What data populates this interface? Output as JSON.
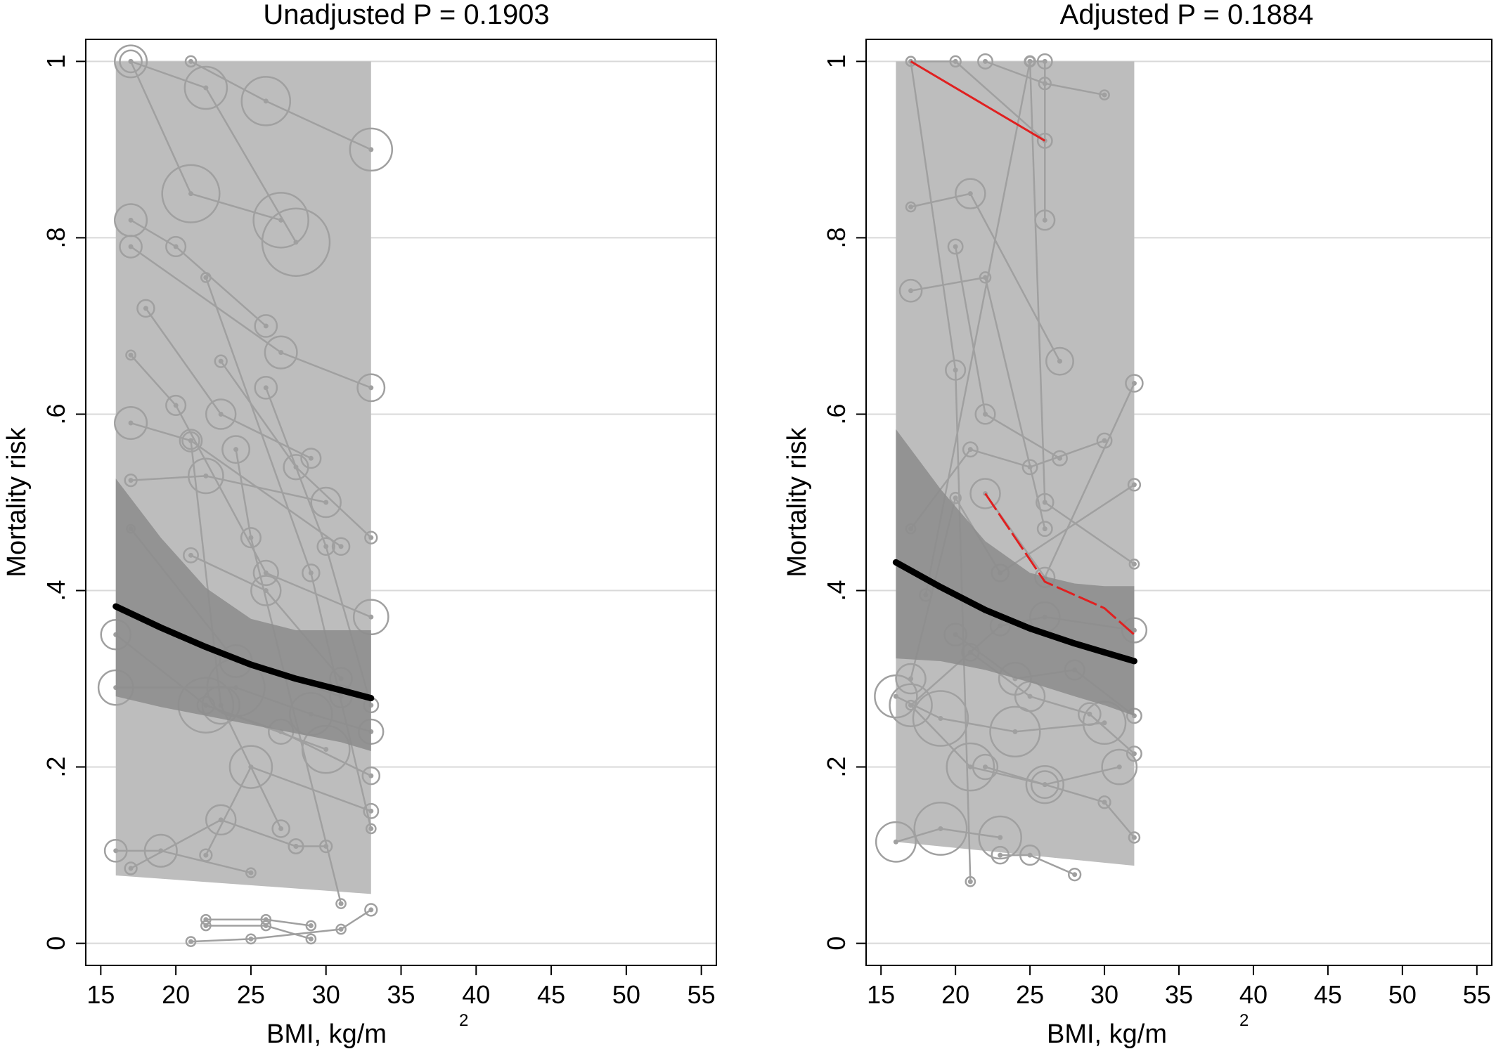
{
  "colors": {
    "band_outer": "#bdbdbd",
    "band_inner": "#8c8c8c",
    "fitted_line": "#000000",
    "study_lines": "#a0a0a0",
    "highlight": "#e02020",
    "grid": "#d9d9d9"
  },
  "chart_data": [
    {
      "type": "line",
      "title": "Unadjusted P = 0.1903",
      "xlabel_main": "BMI, kg/m",
      "xlabel_sup": "2",
      "ylabel": "Mortality risk",
      "xlim": [
        14,
        56
      ],
      "ylim": [
        -0.025,
        1.025
      ],
      "x_ticks": [
        15,
        20,
        25,
        30,
        35,
        40,
        45,
        50,
        55
      ],
      "x_tick_labels": [
        "15",
        "20",
        "25",
        "30",
        "35",
        "40",
        "45",
        "50",
        "55"
      ],
      "y_ticks": [
        0,
        0.2,
        0.4,
        0.6,
        0.8,
        1
      ],
      "y_tick_labels": [
        "0",
        ".2",
        ".4",
        ".6",
        ".8",
        "1"
      ],
      "grid": true,
      "band_outer": {
        "x": [
          16,
          33
        ],
        "lower": [
          0.077,
          0.056
        ],
        "upper": [
          1.0,
          1.0
        ]
      },
      "band_inner": {
        "x": [
          16,
          19,
          22,
          25,
          28,
          31,
          33
        ],
        "lower": [
          0.28,
          0.268,
          0.258,
          0.248,
          0.238,
          0.228,
          0.218
        ],
        "upper": [
          0.527,
          0.46,
          0.403,
          0.368,
          0.355,
          0.355,
          0.355
        ]
      },
      "fitted_line": {
        "x": [
          16,
          19,
          22,
          25,
          28,
          31,
          33
        ],
        "y": [
          0.382,
          0.358,
          0.336,
          0.316,
          0.3,
          0.287,
          0.278
        ]
      },
      "studies": [
        [
          [
            17,
            1.0,
            14
          ],
          [
            22,
            0.97,
            30
          ],
          [
            28,
            0.795,
            50
          ]
        ],
        [
          [
            17,
            1.0,
            22
          ],
          [
            21,
            0.85,
            42
          ],
          [
            27,
            0.82,
            40
          ]
        ],
        [
          [
            21,
            1.0,
            5
          ],
          [
            26,
            0.955,
            35
          ],
          [
            33,
            0.9,
            30
          ]
        ],
        [
          [
            17,
            0.82,
            22
          ],
          [
            20,
            0.79,
            12
          ],
          [
            26,
            0.7,
            14
          ]
        ],
        [
          [
            17,
            0.79,
            14
          ],
          [
            27,
            0.67,
            22
          ],
          [
            33,
            0.63,
            18
          ]
        ],
        [
          [
            18,
            0.72,
            10
          ],
          [
            23,
            0.6,
            20
          ],
          [
            29,
            0.55,
            12
          ]
        ],
        [
          [
            17,
            0.59,
            22
          ],
          [
            21,
            0.57,
            14
          ],
          [
            31,
            0.45,
            10
          ]
        ],
        [
          [
            17,
            0.667,
            4
          ],
          [
            20,
            0.61,
            12
          ],
          [
            26,
            0.42,
            16
          ],
          [
            33,
            0.37,
            24
          ]
        ],
        [
          [
            17,
            0.525,
            6
          ],
          [
            22,
            0.53,
            24
          ],
          [
            30,
            0.5,
            20
          ]
        ],
        [
          [
            17,
            0.47,
            3
          ],
          [
            24,
            0.32,
            22
          ],
          [
            31,
            0.28,
            14
          ]
        ],
        [
          [
            16,
            0.35,
            20
          ],
          [
            22,
            0.27,
            40
          ],
          [
            30,
            0.22,
            34
          ]
        ],
        [
          [
            16,
            0.29,
            24
          ],
          [
            24,
            0.29,
            42
          ],
          [
            29,
            0.26,
            30
          ],
          [
            33,
            0.24,
            16
          ]
        ],
        [
          [
            16,
            0.105,
            14
          ],
          [
            19,
            0.105,
            22
          ],
          [
            25,
            0.08,
            4
          ]
        ],
        [
          [
            17,
            0.085,
            6
          ],
          [
            23,
            0.14,
            20
          ],
          [
            28,
            0.11,
            8
          ]
        ],
        [
          [
            22,
            0.27,
            10
          ],
          [
            27,
            0.24,
            16
          ],
          [
            33,
            0.19,
            10
          ]
        ],
        [
          [
            21,
            0.44,
            8
          ],
          [
            26,
            0.4,
            20
          ],
          [
            31,
            0.3,
            14
          ]
        ],
        [
          [
            22,
            0.755,
            4
          ],
          [
            29,
            0.42,
            10
          ],
          [
            33,
            0.13,
            4
          ]
        ],
        [
          [
            23,
            0.66,
            6
          ],
          [
            28,
            0.54,
            16
          ],
          [
            33,
            0.46,
            6
          ]
        ],
        [
          [
            26,
            0.63,
            14
          ],
          [
            30,
            0.45,
            10
          ],
          [
            33,
            0.27,
            8
          ]
        ],
        [
          [
            24,
            0.56,
            18
          ],
          [
            25,
            0.46,
            12
          ],
          [
            31,
            0.045,
            4
          ]
        ],
        [
          [
            21,
            0.57,
            10
          ],
          [
            23,
            0.27,
            26
          ],
          [
            27,
            0.13,
            10
          ]
        ],
        [
          [
            22,
            0.1,
            6
          ],
          [
            25,
            0.2,
            30
          ],
          [
            33,
            0.15,
            8
          ]
        ],
        [
          [
            22,
            0.027,
            4
          ],
          [
            26,
            0.027,
            4
          ],
          [
            29,
            0.02,
            4
          ]
        ],
        [
          [
            22,
            0.02,
            4
          ],
          [
            26,
            0.02,
            4
          ],
          [
            29,
            0.005,
            4
          ]
        ],
        [
          [
            21,
            0.002,
            4
          ],
          [
            25,
            0.005,
            4
          ],
          [
            31,
            0.016,
            4
          ],
          [
            33,
            0.038,
            6
          ]
        ],
        [
          [
            28,
            0.11,
            8
          ],
          [
            30,
            0.11,
            6
          ]
        ]
      ],
      "highlight_study": []
    },
    {
      "type": "line",
      "title": "Adjusted P = 0.1884",
      "xlabel_main": "BMI, kg/m",
      "xlabel_sup": "2",
      "ylabel": "Mortality risk",
      "xlim": [
        14,
        56
      ],
      "ylim": [
        -0.025,
        1.025
      ],
      "x_ticks": [
        15,
        20,
        25,
        30,
        35,
        40,
        45,
        50,
        55
      ],
      "x_tick_labels": [
        "15",
        "20",
        "25",
        "30",
        "35",
        "40",
        "45",
        "50",
        "55"
      ],
      "y_ticks": [
        0,
        0.2,
        0.4,
        0.6,
        0.8,
        1
      ],
      "y_tick_labels": [
        "0",
        ".2",
        ".4",
        ".6",
        ".8",
        "1"
      ],
      "grid": true,
      "band_outer": {
        "x": [
          16,
          32
        ],
        "lower": [
          0.115,
          0.088
        ],
        "upper": [
          1.0,
          1.0
        ]
      },
      "band_inner": {
        "x": [
          16,
          19,
          22,
          25,
          28,
          30,
          32
        ],
        "lower": [
          0.323,
          0.32,
          0.31,
          0.296,
          0.28,
          0.27,
          0.258
        ],
        "upper": [
          0.583,
          0.515,
          0.456,
          0.42,
          0.408,
          0.405,
          0.405
        ]
      },
      "fitted_line": {
        "x": [
          16,
          19,
          22,
          25,
          28,
          30,
          32
        ],
        "y": [
          0.432,
          0.404,
          0.378,
          0.357,
          0.34,
          0.33,
          0.32
        ]
      },
      "studies": [
        [
          [
            17,
            1.0,
            4
          ],
          [
            20,
            1.0,
            5
          ],
          [
            26,
            0.91,
            8
          ]
        ],
        [
          [
            22,
            1.0,
            8
          ],
          [
            26,
            0.975,
            6
          ],
          [
            30,
            0.962,
            4
          ]
        ],
        [
          [
            25,
            1.0,
            5
          ],
          [
            26,
            1.0,
            8
          ],
          [
            26,
            0.82,
            12
          ]
        ],
        [
          [
            17,
            0.835,
            4
          ],
          [
            21,
            0.85,
            20
          ],
          [
            27,
            0.66,
            18
          ]
        ],
        [
          [
            17,
            0.74,
            14
          ],
          [
            22,
            0.755,
            5
          ],
          [
            26,
            0.47,
            8
          ]
        ],
        [
          [
            20,
            0.79,
            8
          ],
          [
            22,
            0.6,
            12
          ],
          [
            27,
            0.55,
            8
          ]
        ],
        [
          [
            17,
            0.47,
            4
          ],
          [
            21,
            0.56,
            8
          ],
          [
            25,
            0.54,
            8
          ],
          [
            30,
            0.57,
            8
          ]
        ],
        [
          [
            22,
            0.51,
            20
          ],
          [
            26,
            0.415,
            12
          ],
          [
            32,
            0.635,
            10
          ]
        ],
        [
          [
            17,
            0.3,
            20
          ],
          [
            20,
            0.505,
            5
          ],
          [
            23,
            0.42,
            10
          ],
          [
            32,
            0.52,
            6
          ]
        ],
        [
          [
            17,
            0.27,
            30
          ],
          [
            21,
            0.2,
            34
          ],
          [
            26,
            0.18,
            26
          ],
          [
            31,
            0.2,
            24
          ]
        ],
        [
          [
            16,
            0.115,
            28
          ],
          [
            19,
            0.13,
            38
          ],
          [
            23,
            0.12,
            30
          ]
        ],
        [
          [
            16,
            0.28,
            30
          ],
          [
            19,
            0.255,
            40
          ],
          [
            24,
            0.24,
            36
          ],
          [
            30,
            0.25,
            30
          ]
        ],
        [
          [
            17,
            1.0,
            4
          ],
          [
            20,
            0.65,
            12
          ],
          [
            21,
            0.07,
            4
          ]
        ],
        [
          [
            17,
            0.27,
            4
          ],
          [
            23,
            0.36,
            12
          ],
          [
            26,
            0.37,
            20
          ],
          [
            32,
            0.355,
            16
          ]
        ],
        [
          [
            23,
            0.1,
            10
          ],
          [
            25,
            0.1,
            12
          ],
          [
            28,
            0.078,
            6
          ]
        ],
        [
          [
            22,
            0.2,
            16
          ],
          [
            26,
            0.18,
            18
          ],
          [
            30,
            0.16,
            6
          ],
          [
            32,
            0.12,
            5
          ]
        ],
        [
          [
            20,
            0.35,
            14
          ],
          [
            24,
            0.3,
            22
          ],
          [
            28,
            0.31,
            12
          ],
          [
            32,
            0.258,
            8
          ]
        ],
        [
          [
            18,
            0.395,
            6
          ],
          [
            25,
            1.0,
            4
          ],
          [
            26,
            0.5,
            10
          ],
          [
            32,
            0.43,
            4
          ]
        ],
        [
          [
            21,
            0.33,
            10
          ],
          [
            25,
            0.28,
            20
          ],
          [
            29,
            0.26,
            14
          ],
          [
            32,
            0.215,
            8
          ]
        ]
      ],
      "highlight_study": [
        [
          17,
          1.0
        ],
        [
          22,
          0.95
        ],
        [
          26,
          0.91
        ]
      ],
      "highlight_study_2": [
        [
          22,
          0.51
        ],
        [
          24,
          0.46
        ],
        [
          26,
          0.41
        ],
        [
          30,
          0.38
        ],
        [
          32,
          0.35
        ]
      ]
    }
  ]
}
